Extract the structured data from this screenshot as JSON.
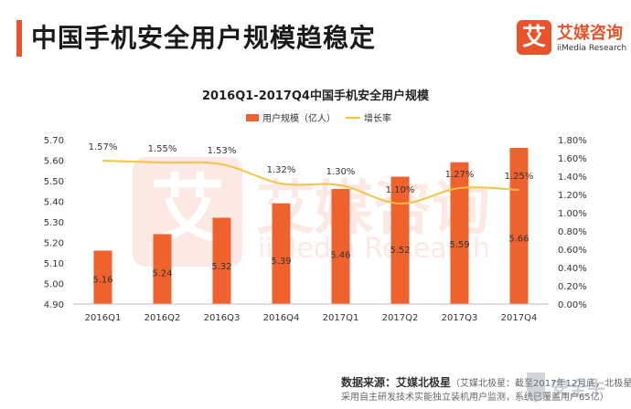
{
  "header": {
    "title": "中国手机安全用户规模趋稳定",
    "accent_color": "#e8532b"
  },
  "brand": {
    "mark": "艾",
    "name_cn": "艾媒咨询",
    "name_en": "iiMedia Research",
    "color": "#e8532b"
  },
  "watermark": {
    "mark": "艾",
    "name_cn": "艾媒咨询",
    "name_en": "iiMedia Research"
  },
  "footer": {
    "source_label": "数据来源：艾媒北极星",
    "source_note": "（艾媒北极星：截至2017年12月底，北极星",
    "line2": "采用自主研发技术实能独立装机用户监测，系统已覆盖用户65亿）"
  },
  "badge": {
    "text": "安全牛",
    "icon": "shield-icon"
  },
  "chart_data": {
    "type": "bar",
    "title": "2016Q1-2017Q4中国手机安全用户规模",
    "categories": [
      "2016Q1",
      "2016Q2",
      "2016Q3",
      "2016Q4",
      "2017Q1",
      "2017Q2",
      "2017Q3",
      "2017Q4"
    ],
    "series": [
      {
        "name": "用户规模（亿人）",
        "type": "bar",
        "axis": "left",
        "color": "#f0622d",
        "values": [
          5.16,
          5.24,
          5.32,
          5.39,
          5.46,
          5.52,
          5.59,
          5.66
        ],
        "labels": [
          "5.16",
          "5.24",
          "5.32",
          "5.39",
          "5.46",
          "5.52",
          "5.59",
          "5.66"
        ]
      },
      {
        "name": "增长率",
        "type": "line",
        "axis": "right",
        "color": "#f5c342",
        "values": [
          1.57,
          1.55,
          1.53,
          1.32,
          1.3,
          1.1,
          1.27,
          1.25
        ],
        "labels": [
          "1.57%",
          "1.55%",
          "1.53%",
          "1.32%",
          "1.30%",
          "1.10%",
          "1.27%",
          "1.25%"
        ]
      }
    ],
    "ylim": [
      4.9,
      5.7
    ],
    "yticks": [
      "4.90",
      "5.00",
      "5.10",
      "5.20",
      "5.30",
      "5.40",
      "5.50",
      "5.60",
      "5.70"
    ],
    "y2lim": [
      0,
      1.8
    ],
    "y2ticks": [
      "0.00%",
      "0.20%",
      "0.40%",
      "0.60%",
      "0.80%",
      "1.00%",
      "1.20%",
      "1.40%",
      "1.60%",
      "1.80%"
    ],
    "legend_position": "top-center",
    "grid": false
  }
}
